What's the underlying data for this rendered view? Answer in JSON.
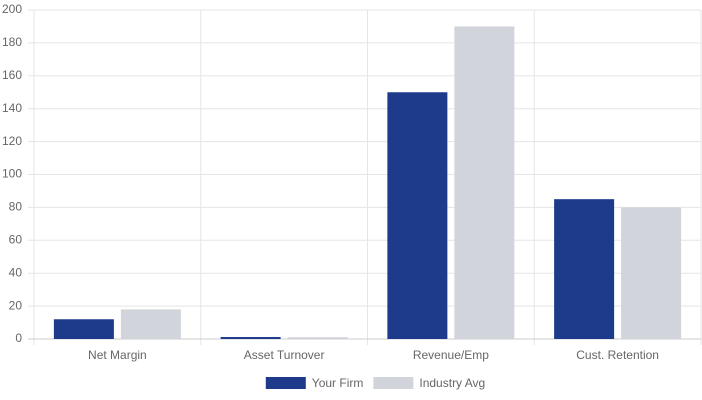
{
  "chart_data": {
    "type": "bar",
    "categories": [
      "Net Margin",
      "Asset Turnover",
      "Revenue/Emp",
      "Cust. Retention"
    ],
    "series": [
      {
        "name": "Your Firm",
        "color": "#1e3a8a",
        "values": [
          12,
          1.2,
          150,
          85
        ]
      },
      {
        "name": "Industry Avg",
        "color": "#d1d5db",
        "values": [
          18,
          1.1,
          190,
          80
        ]
      }
    ],
    "ylim": [
      0,
      200
    ],
    "yticks": [
      0,
      20,
      40,
      60,
      80,
      100,
      120,
      140,
      160,
      180,
      200
    ],
    "grid": true,
    "legend": "bottom"
  }
}
